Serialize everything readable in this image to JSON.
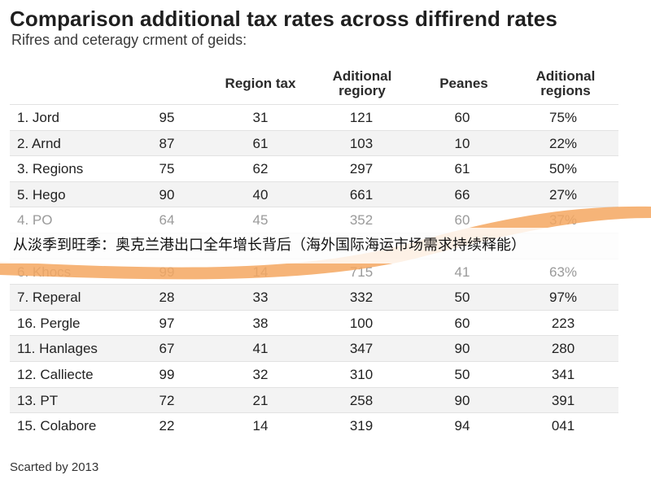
{
  "title": "Comparison additional tax rates across diffirend rates",
  "subtitle": "Rifres and ceteragy crment of geids:",
  "columns": [
    "",
    "",
    "Region tax",
    "Aditional regiory",
    "Peanes",
    "Aditional regions"
  ],
  "rows": [
    {
      "name": "1. Jord",
      "values": [
        "95",
        "31",
        "121",
        "60",
        "75%"
      ]
    },
    {
      "name": "2. Arnd",
      "values": [
        "87",
        "61",
        "103",
        "10",
        "22%"
      ]
    },
    {
      "name": "3. Regions",
      "values": [
        "75",
        "62",
        "297",
        "61",
        "50%"
      ]
    },
    {
      "name": "5. Hego",
      "values": [
        "90",
        "40",
        "661",
        "66",
        "27%"
      ]
    },
    {
      "name": "4. PO",
      "values": [
        "64",
        "45",
        "352",
        "60",
        "37%"
      ]
    },
    {
      "name": "",
      "values": [
        "",
        "",
        "",
        "",
        ""
      ]
    },
    {
      "name": "6. Khocs",
      "values": [
        "99",
        "14",
        "715",
        "41",
        "63%"
      ]
    },
    {
      "name": "7. Reperal",
      "values": [
        "28",
        "33",
        "332",
        "50",
        "97%"
      ]
    },
    {
      "name": "16. Pergle",
      "values": [
        "97",
        "38",
        "100",
        "60",
        "223"
      ]
    },
    {
      "name": "11. Hanlages",
      "values": [
        "67",
        "41",
        "347",
        "90",
        "280"
      ]
    },
    {
      "name": "12. Calliecte",
      "values": [
        "99",
        "32",
        "310",
        "50",
        "341"
      ]
    },
    {
      "name": "13. PT",
      "values": [
        "72",
        "21",
        "258",
        "90",
        "391"
      ]
    },
    {
      "name": "15. Colabore",
      "values": [
        "22",
        "14",
        "319",
        "94",
        "041"
      ]
    }
  ],
  "footer": "Scarted by 2013",
  "overlay_caption": "从淡季到旺季：奥克兰港出口全年增长背后（海外国际海运市场需求持续释能）",
  "colors": {
    "swoosh": "#f4a760",
    "row_alt": "#f3f3f3",
    "text": "#222222"
  }
}
